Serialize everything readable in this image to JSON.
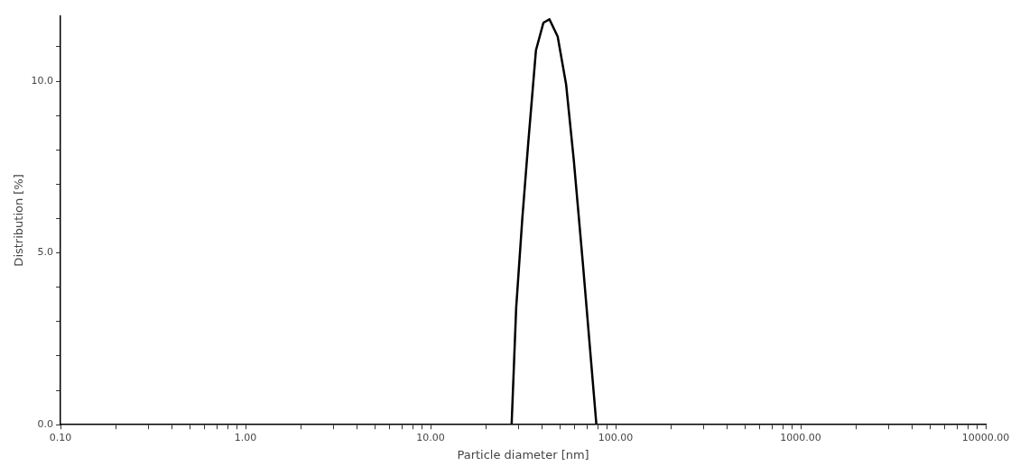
{
  "chart_data": {
    "type": "line",
    "xlabel": "Particle diameter [nm]",
    "ylabel": "Distribution [%]",
    "log": "x",
    "xlim": [
      0.1,
      10000
    ],
    "xticks": [
      {
        "value": 0.1,
        "label": "0.10"
      },
      {
        "value": 0.2,
        "label": null
      },
      {
        "value": 0.3,
        "label": null
      },
      {
        "value": 0.4,
        "label": null
      },
      {
        "value": 0.5,
        "label": null
      },
      {
        "value": 0.6,
        "label": null
      },
      {
        "value": 0.7,
        "label": null
      },
      {
        "value": 0.8,
        "label": null
      },
      {
        "value": 0.9,
        "label": null
      },
      {
        "value": 1,
        "label": "1.00"
      },
      {
        "value": 2,
        "label": null
      },
      {
        "value": 3,
        "label": null
      },
      {
        "value": 4,
        "label": null
      },
      {
        "value": 5,
        "label": null
      },
      {
        "value": 6,
        "label": null
      },
      {
        "value": 7,
        "label": null
      },
      {
        "value": 8,
        "label": null
      },
      {
        "value": 9,
        "label": null
      },
      {
        "value": 10,
        "label": "10.00"
      },
      {
        "value": 20,
        "label": null
      },
      {
        "value": 30,
        "label": null
      },
      {
        "value": 40,
        "label": null
      },
      {
        "value": 50,
        "label": null
      },
      {
        "value": 60,
        "label": null
      },
      {
        "value": 70,
        "label": null
      },
      {
        "value": 80,
        "label": null
      },
      {
        "value": 90,
        "label": null
      },
      {
        "value": 100,
        "label": "100.00"
      },
      {
        "value": 200,
        "label": null
      },
      {
        "value": 300,
        "label": null
      },
      {
        "value": 400,
        "label": null
      },
      {
        "value": 500,
        "label": null
      },
      {
        "value": 600,
        "label": null
      },
      {
        "value": 700,
        "label": null
      },
      {
        "value": 800,
        "label": null
      },
      {
        "value": 900,
        "label": null
      },
      {
        "value": 1000,
        "label": "1000.00"
      },
      {
        "value": 2000,
        "label": null
      },
      {
        "value": 3000,
        "label": null
      },
      {
        "value": 4000,
        "label": null
      },
      {
        "value": 5000,
        "label": null
      },
      {
        "value": 6000,
        "label": null
      },
      {
        "value": 7000,
        "label": null
      },
      {
        "value": 8000,
        "label": null
      },
      {
        "value": 9000,
        "label": null
      },
      {
        "value": 10000,
        "label": "10000.00"
      }
    ],
    "ylim": [
      0,
      11.9
    ],
    "yticks": [
      {
        "value": 0,
        "label": "0.0"
      },
      {
        "value": 1,
        "label": null
      },
      {
        "value": 2,
        "label": null
      },
      {
        "value": 3,
        "label": null
      },
      {
        "value": 4,
        "label": null
      },
      {
        "value": 5,
        "label": "5.0"
      },
      {
        "value": 6,
        "label": null
      },
      {
        "value": 7,
        "label": null
      },
      {
        "value": 8,
        "label": null
      },
      {
        "value": 9,
        "label": null
      },
      {
        "value": 10,
        "label": "10.0"
      },
      {
        "value": 11,
        "label": null
      }
    ],
    "grid": false,
    "legend": false,
    "marker": "none",
    "line_style": "solid",
    "series": [
      {
        "color": "#000000",
        "x": [
          27.4,
          29.0,
          31.3,
          33.7,
          37.1,
          40.7,
          43.9,
          48.6,
          54.0,
          59.4,
          66.5,
          78.7
        ],
        "values": [
          0,
          3.4,
          6.0,
          8.2,
          10.9,
          11.7,
          11.8,
          11.3,
          9.9,
          7.7,
          4.7,
          0
        ]
      }
    ]
  }
}
